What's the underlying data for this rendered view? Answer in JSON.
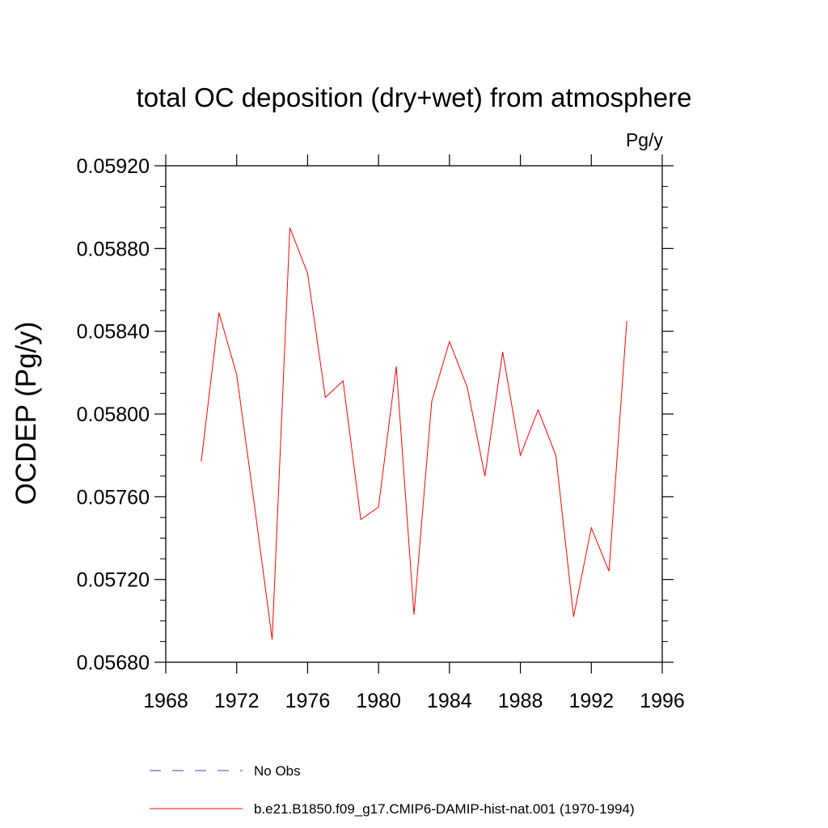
{
  "chart_data": {
    "type": "line",
    "title": "total OC deposition (dry+wet) from atmosphere",
    "units_label": "Pg/y",
    "xlabel": "",
    "ylabel": "OCDEP  (Pg/y)",
    "xlim": [
      1968,
      1996
    ],
    "ylim": [
      0.0568,
      0.0592
    ],
    "x_ticks": [
      "1968",
      "1972",
      "1976",
      "1980",
      "1984",
      "1988",
      "1992",
      "1996"
    ],
    "y_ticks": [
      "0.05680",
      "0.05720",
      "0.05760",
      "0.05800",
      "0.05840",
      "0.05880",
      "0.05920"
    ],
    "grid": false,
    "legend_position": "bottom",
    "series": [
      {
        "name": "No Obs",
        "color": "#4a3fb0",
        "dash": "dashed",
        "x": [],
        "y": []
      },
      {
        "name": "b.e21.B1850.f09_g17.CMIP6-DAMIP-hist-nat.001 (1970-1994)",
        "color": "#ff0000",
        "dash": "solid",
        "x": [
          1970,
          1971,
          1972,
          1973,
          1974,
          1975,
          1976,
          1977,
          1978,
          1979,
          1980,
          1981,
          1982,
          1983,
          1984,
          1985,
          1986,
          1987,
          1988,
          1989,
          1990,
          1991,
          1992,
          1993,
          1994
        ],
        "y": [
          0.05777,
          0.05849,
          0.05819,
          0.05756,
          0.05691,
          0.0589,
          0.05868,
          0.05808,
          0.05816,
          0.05749,
          0.05755,
          0.05823,
          0.05703,
          0.05806,
          0.05835,
          0.05813,
          0.0577,
          0.0583,
          0.0578,
          0.05802,
          0.0578,
          0.05702,
          0.05745,
          0.05724,
          0.05845
        ]
      }
    ]
  }
}
